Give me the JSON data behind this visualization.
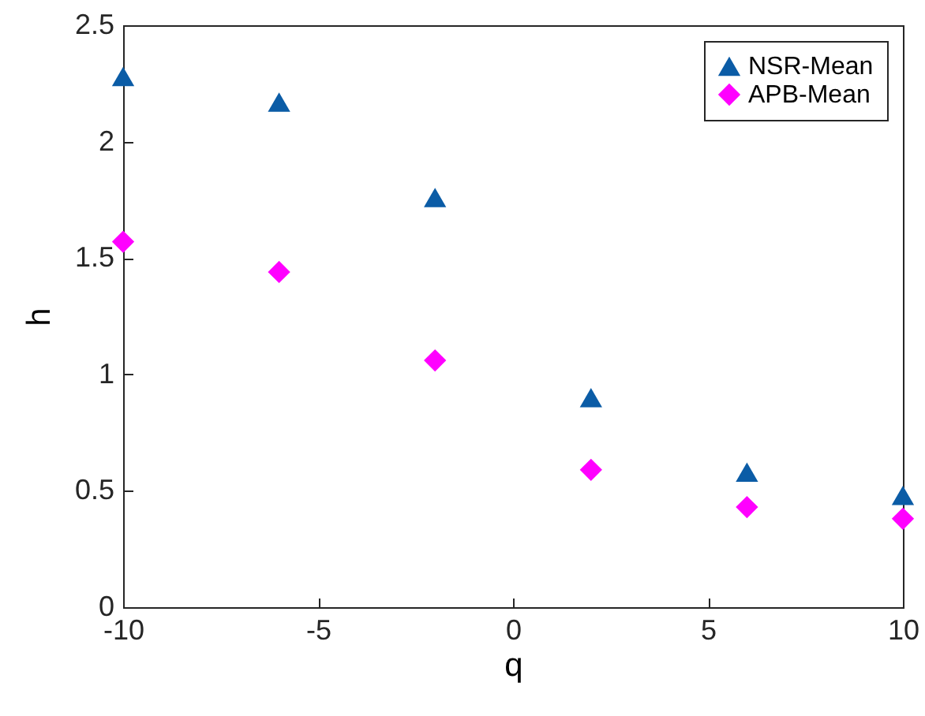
{
  "chart_data": {
    "type": "scatter",
    "xlabel": "q",
    "ylabel": "h",
    "xlim": [
      -10,
      10
    ],
    "ylim": [
      0,
      2.5
    ],
    "xticks": [
      -10,
      -5,
      0,
      5,
      10
    ],
    "yticks": [
      0,
      0.5,
      1,
      1.5,
      2,
      2.5
    ],
    "grid": false,
    "legend": "top right",
    "x": [
      -10,
      -6,
      -2,
      2,
      6,
      10
    ],
    "series": [
      {
        "name": "NSR-Mean",
        "color": "#0b5ca6",
        "marker": "triangle",
        "values": [
          2.28,
          2.17,
          1.76,
          0.9,
          0.58,
          0.48
        ]
      },
      {
        "name": "APB-Mean",
        "color": "#ff00ff",
        "marker": "diamond",
        "values": [
          1.57,
          1.44,
          1.06,
          0.59,
          0.43,
          0.38
        ]
      }
    ]
  }
}
